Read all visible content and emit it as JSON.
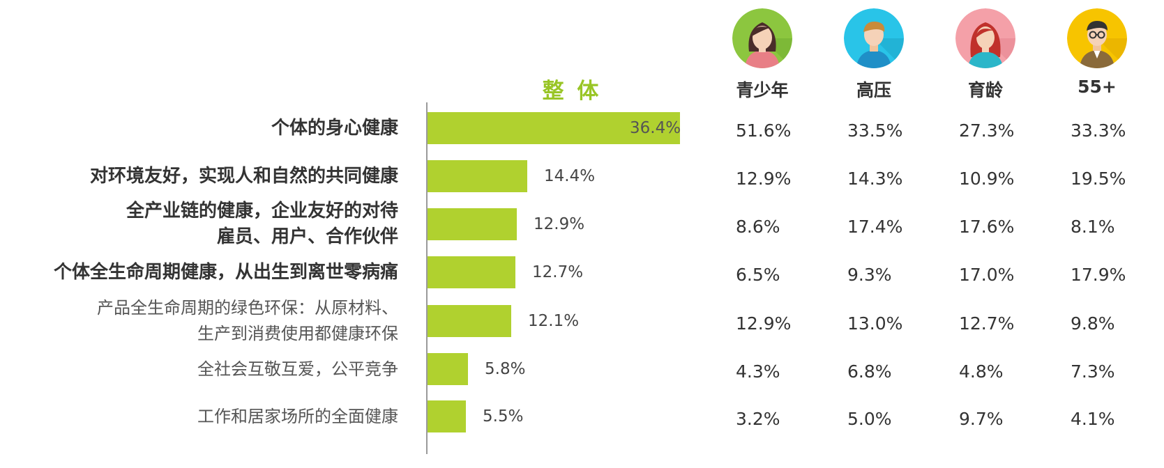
{
  "chart_data": {
    "type": "bar",
    "overall_header": "整 体",
    "categories": [
      [
        "个体的身心健康"
      ],
      [
        "对环境友好，实现人和自然的共同健康"
      ],
      [
        "全产业链的健康，企业友好的对待",
        "雇员、用户、合作伙伴"
      ],
      [
        "个体全生命周期健康，从出生到离世零病痛"
      ],
      [
        "产品全生命周期的绿色环保：从原材料、",
        "生产到消费使用都健康环保"
      ],
      [
        "全社会互敬互爱，公平竞争"
      ],
      [
        "工作和居家场所的全面健康"
      ]
    ],
    "values": [
      36.4,
      14.4,
      12.9,
      12.7,
      12.1,
      5.8,
      5.5
    ],
    "value_labels": [
      "36.4%",
      "14.4%",
      "12.9%",
      "12.7%",
      "12.1%",
      "5.8%",
      "5.5%"
    ],
    "bar_color": "#b0d12f",
    "group_columns": [
      {
        "name": "青少年",
        "icon": "teen-girl-avatar-icon",
        "bg": "#8cc63f",
        "values": [
          "51.6%",
          "12.9%",
          "8.6%",
          "6.5%",
          "12.9%",
          "4.3%",
          "3.2%"
        ]
      },
      {
        "name": "高压",
        "icon": "young-man-avatar-icon",
        "bg": "#29c4e8",
        "values": [
          "33.5%",
          "14.3%",
          "17.4%",
          "9.3%",
          "13.0%",
          "6.8%",
          "5.0%"
        ]
      },
      {
        "name": "育龄",
        "icon": "woman-avatar-icon",
        "bg": "#f4a0a8",
        "values": [
          "27.3%",
          "10.9%",
          "17.6%",
          "17.0%",
          "12.7%",
          "4.8%",
          "9.7%"
        ]
      },
      {
        "name": "55+",
        "icon": "senior-man-avatar-icon",
        "bg": "#f7c400",
        "values": [
          "33.3%",
          "19.5%",
          "8.1%",
          "17.9%",
          "9.8%",
          "7.3%",
          "4.1%"
        ]
      }
    ]
  }
}
